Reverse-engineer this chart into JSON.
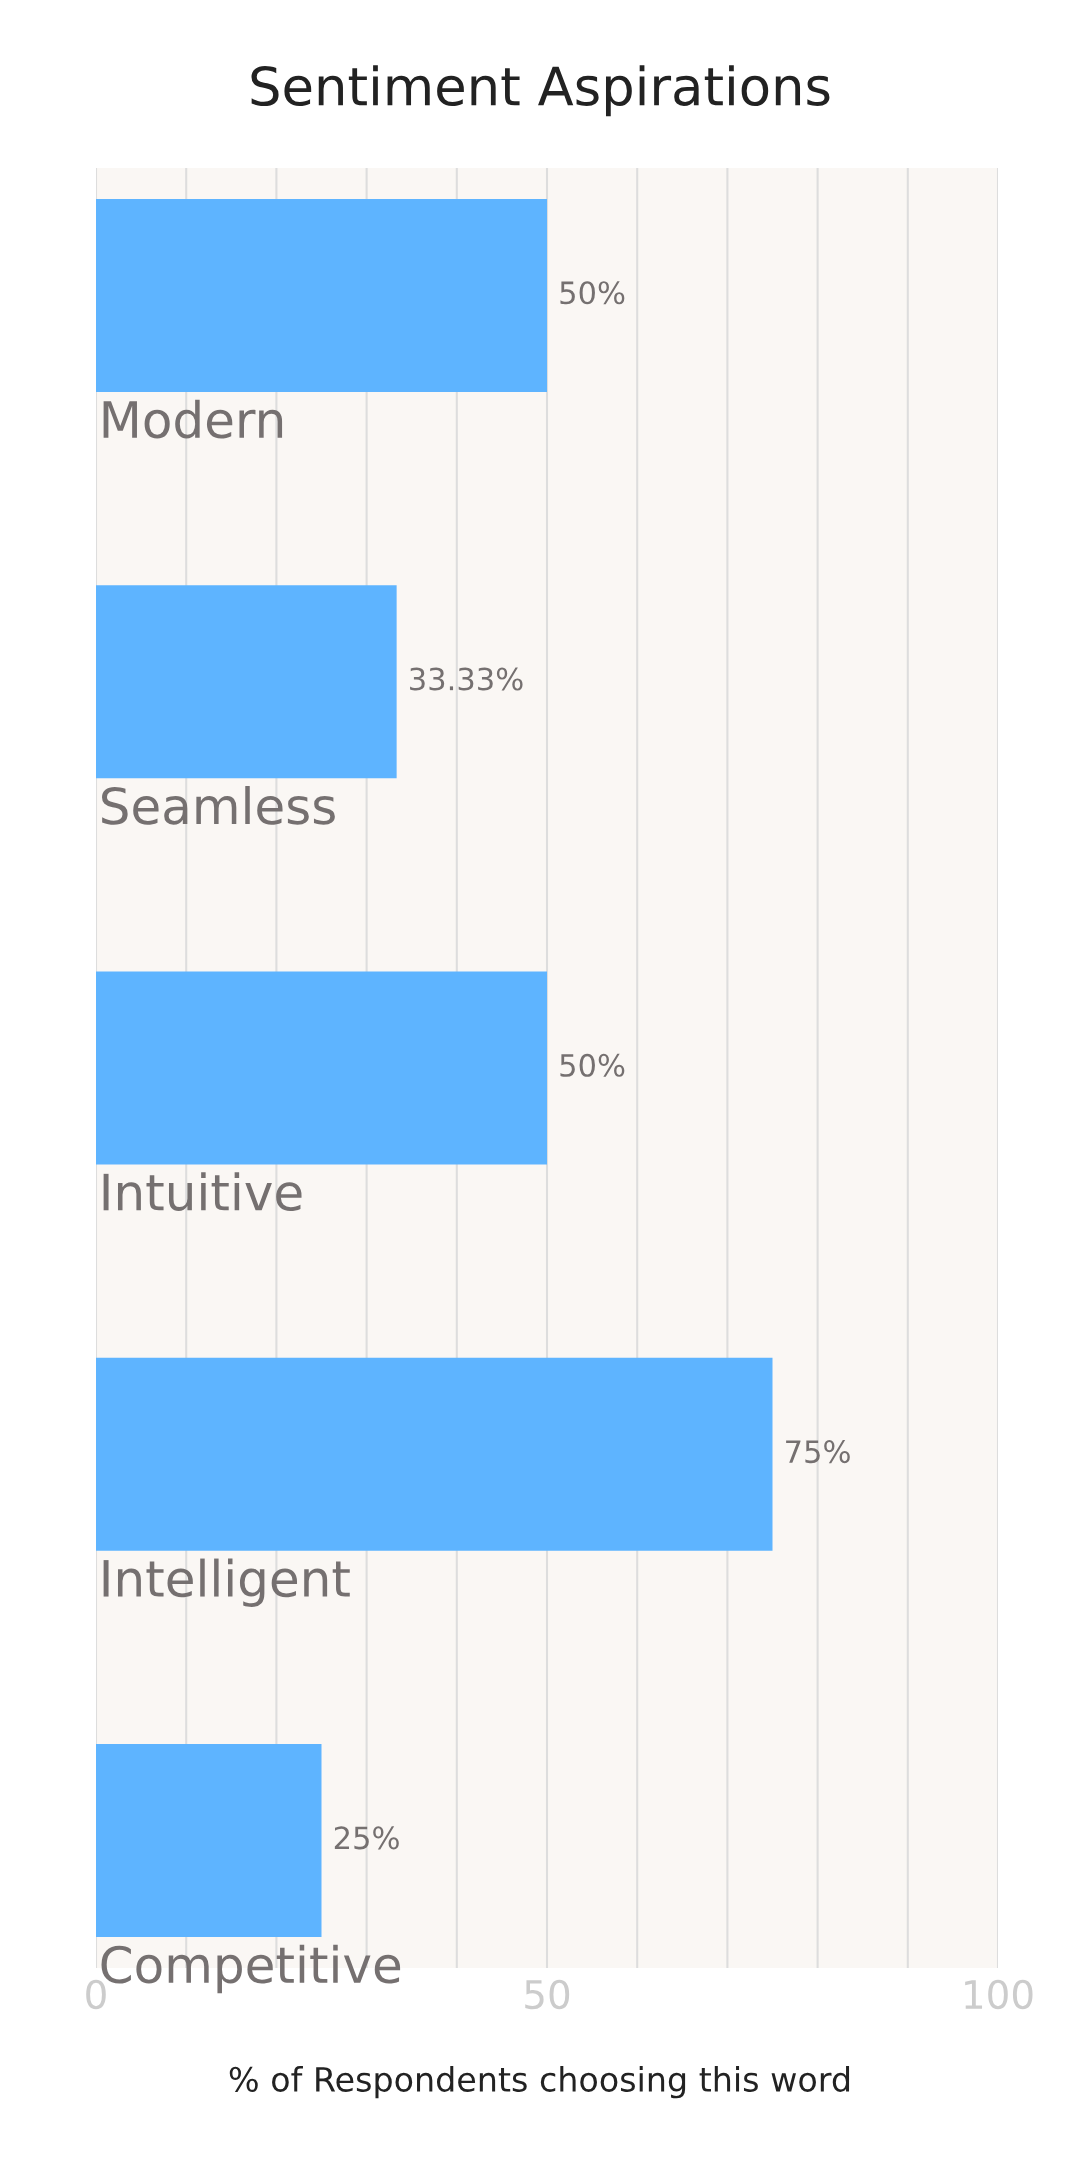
{
  "chart_data": {
    "type": "bar",
    "orientation": "horizontal",
    "title": "Sentiment Aspirations",
    "xlabel": "% of Respondents choosing this word",
    "categories": [
      "Modern",
      "Seamless",
      "Intuitive",
      "Intelligent",
      "Competitive"
    ],
    "values": [
      50,
      33.33,
      50,
      75,
      25
    ],
    "color": "#5eb4ff",
    "value_labels": [
      "50%",
      "33.33%",
      "50%",
      "75%",
      "25%"
    ],
    "xlim": [
      0,
      100
    ],
    "xticks": [
      0,
      {
        "value": 10,
        "label": null
      },
      {
        "value": 20,
        "label": null
      },
      {
        "value": 30,
        "label": null
      },
      {
        "value": 40,
        "label": null
      },
      50,
      {
        "value": 60,
        "label": null
      },
      {
        "value": 70,
        "label": null
      },
      {
        "value": 80,
        "label": null
      },
      {
        "value": 90,
        "label": null
      },
      100
    ],
    "grid": "x",
    "legend": false
  }
}
